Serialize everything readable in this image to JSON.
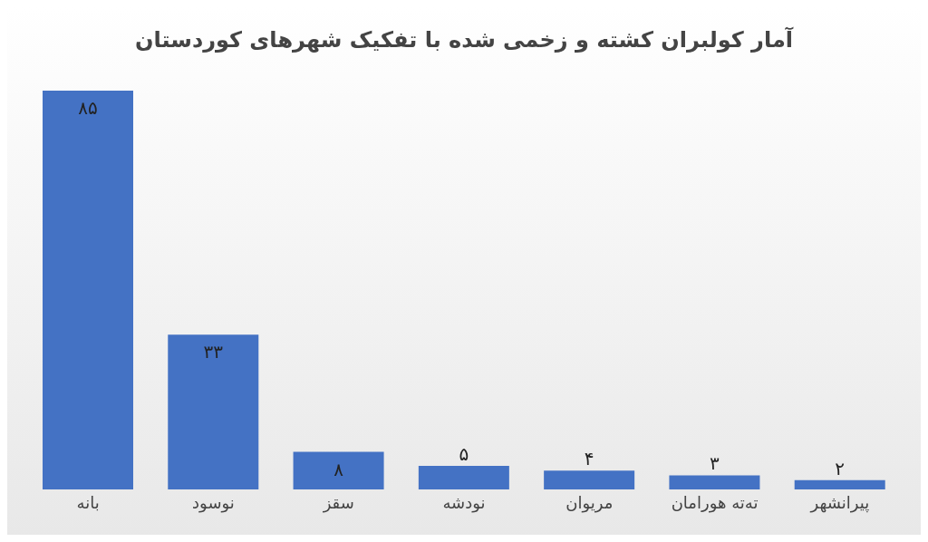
{
  "chart_data": {
    "type": "bar",
    "title": "آمار کولبران کشته و زخمی شده با تفکیک شهرهای کوردستان",
    "categories": [
      "بانه",
      "نوسود",
      "سقز",
      "نودشه",
      "مریوان",
      "تەتە هورامان",
      "پیرانشهر"
    ],
    "values": [
      85,
      33,
      8,
      5,
      4,
      3,
      2
    ],
    "value_labels": [
      "۸۵",
      "۳۳",
      "۸",
      "۵",
      "۴",
      "۳",
      "۲"
    ],
    "color": "#4472c4"
  }
}
